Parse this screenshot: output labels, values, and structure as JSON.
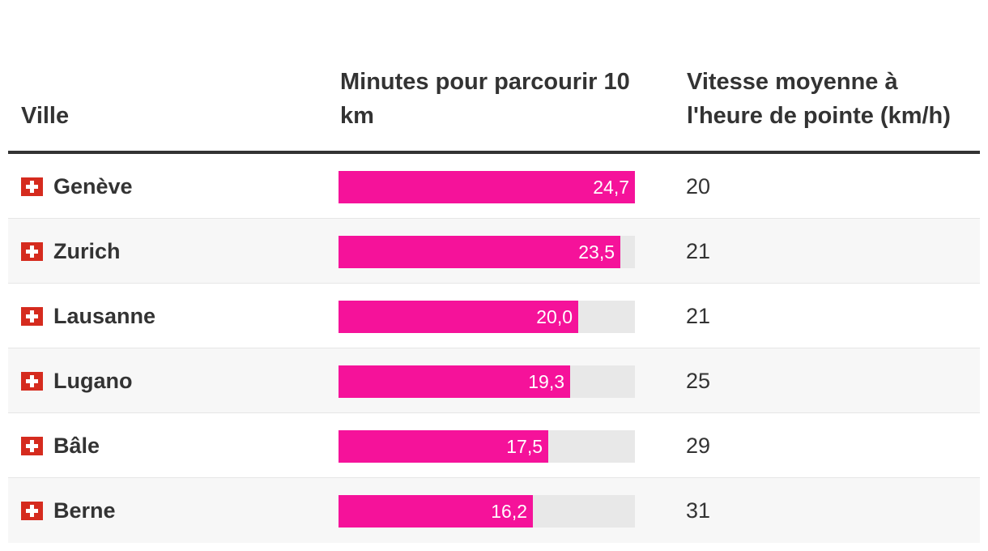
{
  "chart_data": {
    "type": "table",
    "columns": [
      "Ville",
      "Minutes pour parcourir 10 km",
      "Vitesse moyenne à l'heure de pointe (km/h)"
    ],
    "rows": [
      {
        "city": "Genève",
        "minutes": 24.7,
        "minutes_label": "24,7",
        "speed": "20"
      },
      {
        "city": "Zurich",
        "minutes": 23.5,
        "minutes_label": "23,5",
        "speed": "21"
      },
      {
        "city": "Lausanne",
        "minutes": 20.0,
        "minutes_label": "20,0",
        "speed": "21"
      },
      {
        "city": "Lugano",
        "minutes": 19.3,
        "minutes_label": "19,3",
        "speed": "25"
      },
      {
        "city": "Bâle",
        "minutes": 17.5,
        "minutes_label": "17,5",
        "speed": "29"
      },
      {
        "city": "Berne",
        "minutes": 16.2,
        "minutes_label": "16,2",
        "speed": "31"
      }
    ],
    "bar_max": 24.7,
    "colors": {
      "bar": "#f5129a",
      "track": "#e8e8e8",
      "flag": "#d52b1e",
      "text": "#333333"
    }
  }
}
